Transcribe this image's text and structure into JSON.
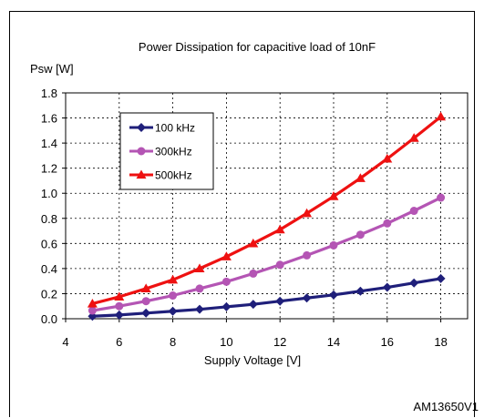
{
  "figure_id": "AM13650V1",
  "chart_data": {
    "type": "line",
    "title": "Power Dissipation for capacitive load of 10nF",
    "xlabel": "Supply Voltage [V]",
    "ylabel": "Psw [W]",
    "xlim": [
      4,
      19
    ],
    "ylim": [
      0,
      1.8
    ],
    "x_ticks": [
      "4",
      "6",
      "8",
      "10",
      "12",
      "14",
      "16",
      "18"
    ],
    "y_ticks": [
      "0.0",
      "0.2",
      "0.4",
      "0.6",
      "0.8",
      "1.0",
      "1.2",
      "1.4",
      "1.6",
      "1.8"
    ],
    "grid": "dashed",
    "legend_position": "top-left",
    "x": [
      5,
      6,
      7,
      8,
      9,
      10,
      11,
      12,
      13,
      14,
      15,
      16,
      17,
      18
    ],
    "series": [
      {
        "name": "100 kHz",
        "color": "#1f1f7a",
        "marker": "diamond",
        "values": [
          0.02,
          0.03,
          0.045,
          0.06,
          0.075,
          0.095,
          0.115,
          0.14,
          0.165,
          0.19,
          0.22,
          0.25,
          0.285,
          0.32
        ]
      },
      {
        "name": "300kHz",
        "color": "#b455b4",
        "marker": "circle",
        "values": [
          0.065,
          0.1,
          0.14,
          0.185,
          0.24,
          0.295,
          0.36,
          0.43,
          0.505,
          0.585,
          0.67,
          0.76,
          0.86,
          0.965
        ]
      },
      {
        "name": "500kHz",
        "color": "#ee1111",
        "marker": "triangle",
        "values": [
          0.12,
          0.175,
          0.24,
          0.31,
          0.4,
          0.495,
          0.6,
          0.71,
          0.84,
          0.975,
          1.12,
          1.275,
          1.44,
          1.61
        ]
      }
    ]
  }
}
